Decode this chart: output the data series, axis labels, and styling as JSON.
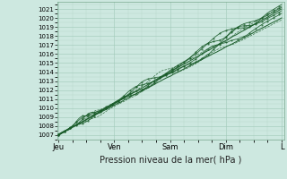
{
  "xlabel": "Pression niveau de la mer( hPa )",
  "yticks": [
    1007,
    1008,
    1009,
    1010,
    1011,
    1012,
    1013,
    1014,
    1015,
    1016,
    1017,
    1018,
    1019,
    1020,
    1021
  ],
  "xtick_labels": [
    "Jeu",
    "Ven",
    "Sam",
    "Dim",
    "L"
  ],
  "bg_color": "#cde8e0",
  "plot_bg_color": "#cde8e0",
  "grid_major_color": "#a0c8b8",
  "grid_minor_color": "#b8d8cc",
  "line_color": "#1a5c2a",
  "ylim_low": 1006.5,
  "ylim_high": 1021.8,
  "xlim_low": -0.02,
  "xlim_high": 4.45,
  "ylabel_fontsize": 5.5,
  "xlabel_fontsize": 7,
  "tick_fontsize": 5
}
